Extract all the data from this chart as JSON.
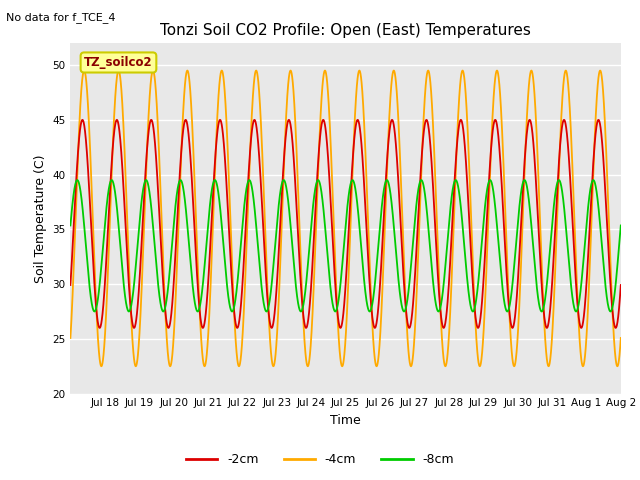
{
  "title": "Tonzi Soil CO2 Profile: Open (East) Temperatures",
  "xlabel": "Time",
  "ylabel": "Soil Temperature (C)",
  "top_left_text": "No data for f_TCE_4",
  "legend_label_text": "TZ_soilco2",
  "ylim": [
    20,
    52
  ],
  "yticks": [
    20,
    25,
    30,
    35,
    40,
    45,
    50
  ],
  "bg_color": "#ffffff",
  "plot_bg_color": "#e8e8e8",
  "grid_color": "#ffffff",
  "line_colors": {
    "-2cm": "#dd0000",
    "-4cm": "#ffaa00",
    "-8cm": "#00cc00"
  },
  "date_labels": [
    "Jul 18",
    "Jul 19",
    "Jul 20",
    "Jul 21",
    "Jul 22",
    "Jul 23",
    "Jul 24",
    "Jul 25",
    "Jul 26",
    "Jul 27",
    "Jul 28",
    "Jul 29",
    "Jul 30",
    "Jul 31",
    "Aug 1",
    "Aug 2"
  ],
  "n_days": 16,
  "mean_4cm": 36.0,
  "amp_4cm": 13.5,
  "phase_4cm": 0.15,
  "mean_2cm": 35.5,
  "amp_2cm": 9.5,
  "phase_2cm": 0.1,
  "mean_8cm": 33.5,
  "amp_8cm": 6.0,
  "phase_8cm": -0.05,
  "lw": 1.3
}
